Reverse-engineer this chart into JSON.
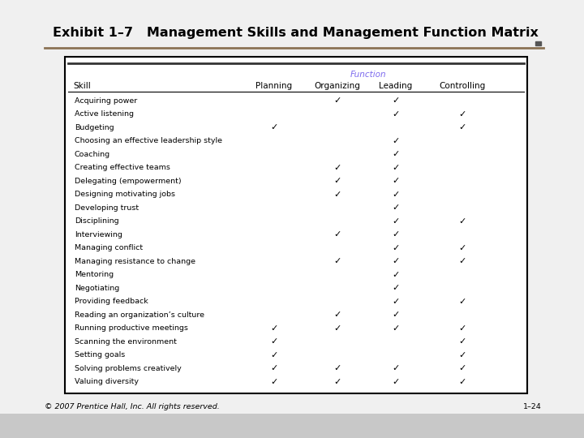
{
  "title": "Exhibit 1–7   Management Skills and Management Function Matrix",
  "title_color": "#000000",
  "title_fontsize": 11.5,
  "separator_color": "#8B7355",
  "function_label": "Function",
  "function_label_color": "#7B68EE",
  "skills": [
    "Acquiring power",
    "Active listening",
    "Budgeting",
    "Choosing an effective leadership style",
    "Coaching",
    "Creating effective teams",
    "Delegating (empowerment)",
    "Designing motivating jobs",
    "Developing trust",
    "Disciplining",
    "Interviewing",
    "Managing conflict",
    "Managing resistance to change",
    "Mentoring",
    "Negotiating",
    "Providing feedback",
    "Reading an organization’s culture",
    "Running productive meetings",
    "Scanning the environment",
    "Setting goals",
    "Solving problems creatively",
    "Valuing diversity"
  ],
  "checks": {
    "Acquiring power": [
      0,
      1,
      1,
      0
    ],
    "Active listening": [
      0,
      0,
      1,
      1
    ],
    "Budgeting": [
      1,
      0,
      0,
      1
    ],
    "Choosing an effective leadership style": [
      0,
      0,
      1,
      0
    ],
    "Coaching": [
      0,
      0,
      1,
      0
    ],
    "Creating effective teams": [
      0,
      1,
      1,
      0
    ],
    "Delegating (empowerment)": [
      0,
      1,
      1,
      0
    ],
    "Designing motivating jobs": [
      0,
      1,
      1,
      0
    ],
    "Developing trust": [
      0,
      0,
      1,
      0
    ],
    "Disciplining": [
      0,
      0,
      1,
      1
    ],
    "Interviewing": [
      0,
      1,
      1,
      0
    ],
    "Managing conflict": [
      0,
      0,
      1,
      1
    ],
    "Managing resistance to change": [
      0,
      1,
      1,
      1
    ],
    "Mentoring": [
      0,
      0,
      1,
      0
    ],
    "Negotiating": [
      0,
      0,
      1,
      0
    ],
    "Providing feedback": [
      0,
      0,
      1,
      1
    ],
    "Reading an organization’s culture": [
      0,
      1,
      1,
      0
    ],
    "Running productive meetings": [
      1,
      1,
      1,
      1
    ],
    "Scanning the environment": [
      1,
      0,
      0,
      1
    ],
    "Setting goals": [
      1,
      0,
      0,
      1
    ],
    "Solving problems creatively": [
      1,
      1,
      1,
      1
    ],
    "Valuing diversity": [
      1,
      1,
      1,
      1
    ]
  },
  "footer_left": "© 2007 Prentice Hall, Inc. All rights reserved.",
  "footer_right": "1–24",
  "bg_color": "#C8C8C8",
  "slide_bg": "#F0F0F0",
  "table_bg": "#FFFFFF",
  "border_color": "#000000",
  "header_line_color": "#000000",
  "small_rect_color": "#555555",
  "table_top_line_color": "#333333"
}
